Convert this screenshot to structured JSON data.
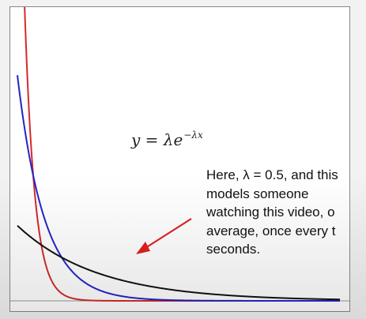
{
  "chart_data": {
    "type": "line",
    "title": "",
    "xlabel": "",
    "ylabel": "",
    "xlim": [
      0,
      8
    ],
    "ylim": [
      0,
      2.0
    ],
    "grid": false,
    "legend": null,
    "series": [
      {
        "lambda": 4.0,
        "color": "#d42a2a"
      },
      {
        "lambda": 1.5,
        "color": "#2424c8"
      },
      {
        "lambda": 0.5,
        "color": "#111111"
      }
    ],
    "formula": {
      "base": "y = λe",
      "exponent": "−λx"
    },
    "annotation": {
      "lines": [
        "Here, λ = 0.5, and this",
        "models someone",
        "watching this video, o",
        "average, once every t",
        "seconds."
      ],
      "arrow_color": "#e02020"
    }
  }
}
